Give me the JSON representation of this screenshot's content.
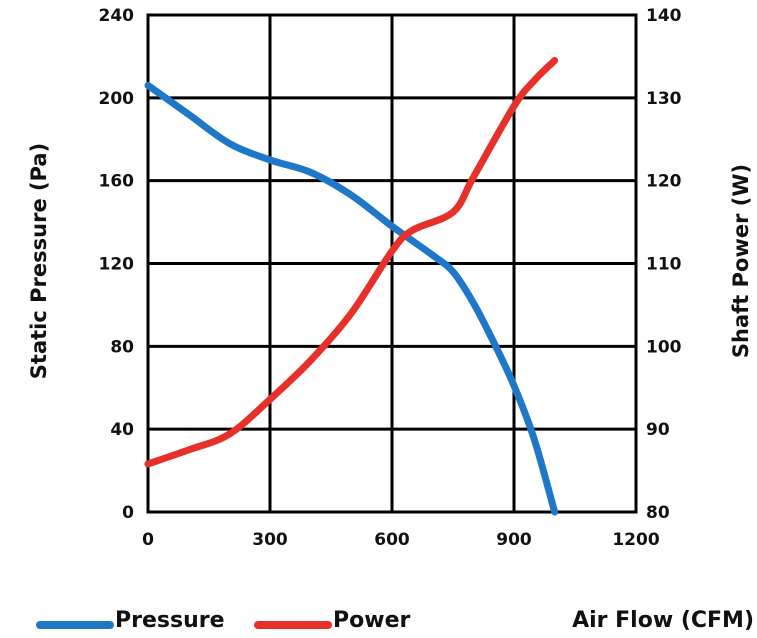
{
  "chart_data": {
    "type": "line",
    "xlabel": "Air Flow (CFM)",
    "ylabel": "Static Pressure (Pa)",
    "y2label": "Shaft Power (W)",
    "xlim": [
      0,
      1200
    ],
    "ylim": [
      0,
      240
    ],
    "y2lim": [
      80,
      140
    ],
    "x_ticks": [
      "0",
      "300",
      "600",
      "900",
      "1200"
    ],
    "y_ticks": [
      "0",
      "40",
      "80",
      "120",
      "160",
      "200",
      "240"
    ],
    "y2_ticks": [
      "80",
      "90",
      "100",
      "110",
      "120",
      "130",
      "140"
    ],
    "grid": true,
    "legend_position": "bottom",
    "series": [
      {
        "name": "Pressure",
        "axis": "left",
        "color": "#1f77c8",
        "x": [
          0,
          100,
          200,
          300,
          400,
          500,
          600,
          700,
          750,
          800,
          850,
          900,
          950,
          1000
        ],
        "y": [
          206,
          192,
          178,
          170,
          164,
          153,
          138,
          124,
          116,
          101,
          82,
          61,
          35,
          0
        ]
      },
      {
        "name": "Power",
        "axis": "right",
        "color": "#e8302a",
        "x": [
          0,
          100,
          200,
          300,
          400,
          500,
          600,
          650,
          750,
          800,
          900,
          950,
          1000
        ],
        "y": [
          85.8,
          87.5,
          89.4,
          93.6,
          98.3,
          104,
          111.5,
          114,
          116.2,
          120.4,
          129,
          132.1,
          134.5
        ]
      }
    ]
  }
}
